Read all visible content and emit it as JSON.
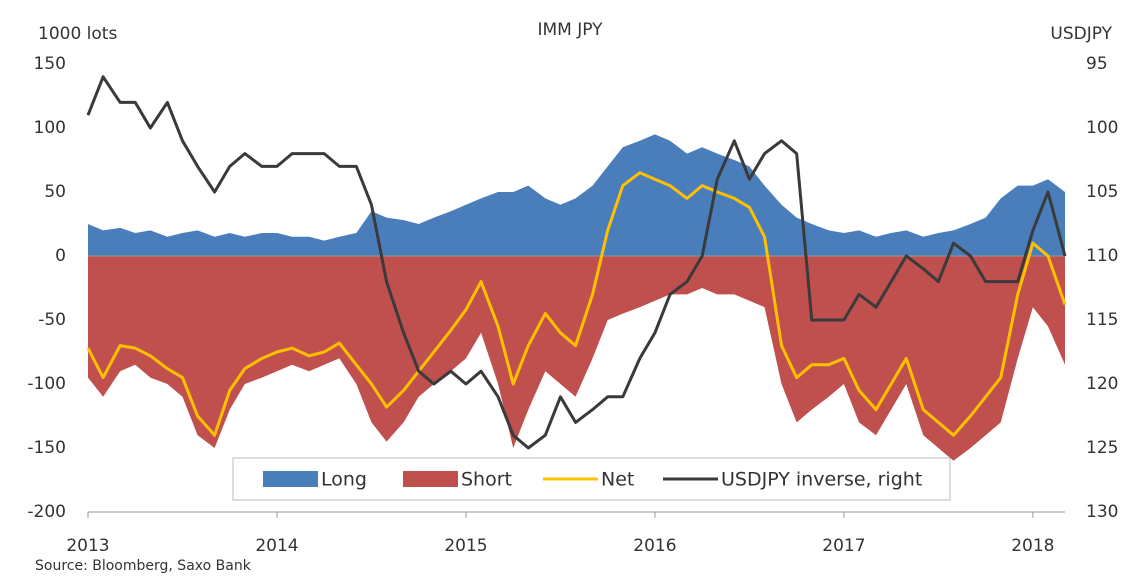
{
  "chart_data": {
    "type": "area-line",
    "title": "IMM JPY",
    "y_label": "1000 lots",
    "y2_label": "USDJPY",
    "source": "Source: Bloomberg,  Saxo Bank",
    "x": [
      2013,
      2013.08,
      2013.17,
      2013.25,
      2013.33,
      2013.42,
      2013.5,
      2013.58,
      2013.67,
      2013.75,
      2013.83,
      2013.92,
      2014,
      2014.08,
      2014.17,
      2014.25,
      2014.33,
      2014.42,
      2014.5,
      2014.58,
      2014.67,
      2014.75,
      2014.83,
      2014.92,
      2015,
      2015.08,
      2015.17,
      2015.25,
      2015.33,
      2015.42,
      2015.5,
      2015.58,
      2015.67,
      2015.75,
      2015.83,
      2015.92,
      2016,
      2016.08,
      2016.17,
      2016.25,
      2016.33,
      2016.42,
      2016.5,
      2016.58,
      2016.67,
      2016.75,
      2016.83,
      2016.92,
      2017,
      2017.08,
      2017.17,
      2017.25,
      2017.33,
      2017.42,
      2017.5,
      2017.58,
      2017.67,
      2017.75,
      2017.83,
      2017.92,
      2018,
      2018.08,
      2018.17
    ],
    "xlim": [
      2013,
      2018.17
    ],
    "xticks": [
      2013,
      2014,
      2015,
      2016,
      2017,
      2018
    ],
    "ylim": [
      -200,
      150
    ],
    "yticks": [
      -200,
      -150,
      -100,
      -50,
      0,
      50,
      100,
      150
    ],
    "y2lim": [
      130,
      95
    ],
    "y2ticks": [
      95,
      100,
      105,
      110,
      115,
      120,
      125,
      130
    ],
    "legend": "lower center",
    "series": [
      {
        "name": "Long",
        "kind": "area",
        "color": "#4a7ebb",
        "values": [
          25,
          20,
          22,
          18,
          20,
          15,
          18,
          20,
          15,
          18,
          15,
          18,
          18,
          15,
          15,
          12,
          15,
          18,
          35,
          30,
          28,
          25,
          30,
          35,
          40,
          45,
          50,
          50,
          55,
          45,
          40,
          45,
          55,
          70,
          85,
          90,
          95,
          90,
          80,
          85,
          80,
          75,
          70,
          55,
          40,
          30,
          25,
          20,
          18,
          20,
          15,
          18,
          20,
          15,
          18,
          20,
          25,
          30,
          45,
          55,
          55,
          60,
          50
        ]
      },
      {
        "name": "Short",
        "kind": "area",
        "color": "#c0504d",
        "values": [
          -95,
          -110,
          -90,
          -85,
          -95,
          -100,
          -110,
          -140,
          -150,
          -120,
          -100,
          -95,
          -90,
          -85,
          -90,
          -85,
          -80,
          -100,
          -130,
          -145,
          -130,
          -110,
          -100,
          -90,
          -80,
          -60,
          -100,
          -150,
          -120,
          -90,
          -100,
          -110,
          -80,
          -50,
          -45,
          -40,
          -35,
          -30,
          -30,
          -25,
          -30,
          -30,
          -35,
          -40,
          -100,
          -130,
          -120,
          -110,
          -100,
          -130,
          -140,
          -120,
          -100,
          -140,
          -150,
          -160,
          -150,
          -140,
          -130,
          -80,
          -40,
          -55,
          -85
        ]
      },
      {
        "name": "Net",
        "kind": "line",
        "color": "#ffc000",
        "values": [
          -72,
          -95,
          -70,
          -72,
          -78,
          -88,
          -95,
          -125,
          -140,
          -105,
          -88,
          -80,
          -75,
          -72,
          -78,
          -75,
          -68,
          -85,
          -100,
          -118,
          -105,
          -90,
          -75,
          -58,
          -42,
          -20,
          -55,
          -100,
          -70,
          -45,
          -60,
          -70,
          -30,
          20,
          55,
          65,
          60,
          55,
          45,
          55,
          50,
          45,
          38,
          15,
          -70,
          -95,
          -85,
          -85,
          -80,
          -105,
          -120,
          -100,
          -80,
          -120,
          -130,
          -140,
          -125,
          -110,
          -95,
          -30,
          10,
          0,
          -38
        ]
      },
      {
        "name": "USDJPY inverse, right",
        "kind": "line",
        "axis": "y2",
        "color": "#3a3a3a",
        "values": [
          99,
          96,
          98,
          98,
          100,
          98,
          101,
          103,
          105,
          103,
          102,
          103,
          103,
          102,
          102,
          102,
          103,
          103,
          106,
          112,
          116,
          119,
          120,
          119,
          120,
          119,
          121,
          124,
          125,
          124,
          121,
          123,
          122,
          121,
          121,
          118,
          116,
          113,
          112,
          110,
          104,
          101,
          104,
          102,
          101,
          102,
          115,
          115,
          115,
          113,
          114,
          112,
          110,
          111,
          112,
          109,
          110,
          112,
          112,
          112,
          108,
          105,
          110
        ]
      }
    ]
  }
}
